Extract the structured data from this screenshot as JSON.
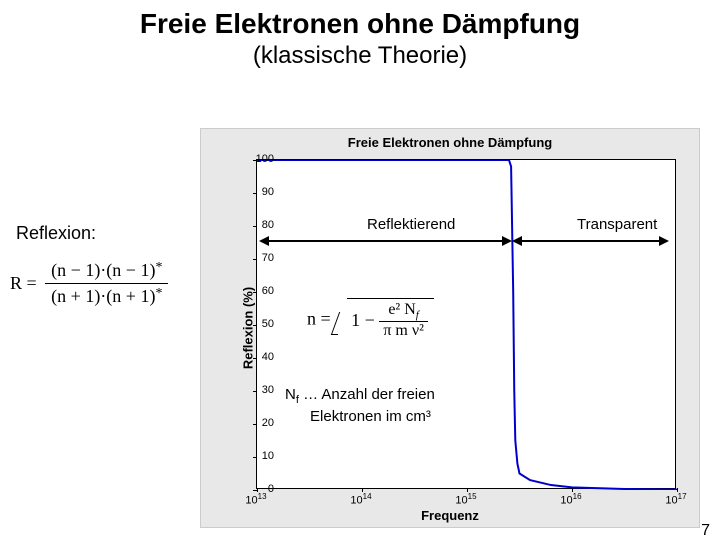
{
  "title": "Freie Elektronen ohne Dämpfung",
  "subtitle": "(klassische Theorie)",
  "reflexion_label": "Reflexion:",
  "formula_R": {
    "R": "R =",
    "num": "(n − 1)·(n − 1)",
    "den": "(n + 1)·(n + 1)",
    "star": "*"
  },
  "chart": {
    "type": "line",
    "title": "Freie Elektronen ohne Dämpfung",
    "ylabel": "Reflexion (%)",
    "xlabel": "Frequenz",
    "ylim": [
      0,
      100
    ],
    "yticks": [
      0,
      10,
      20,
      30,
      40,
      50,
      60,
      70,
      80,
      90,
      100
    ],
    "xlim_exp": [
      13,
      17
    ],
    "xticks_exp": [
      13,
      14,
      15,
      16,
      17
    ],
    "line_color": "#0000cc",
    "line_width": 2,
    "background_color": "#ffffff",
    "container_bg": "#e8e8e8",
    "curve_points": [
      [
        13.0,
        100
      ],
      [
        14.0,
        100
      ],
      [
        14.5,
        100
      ],
      [
        15.0,
        100
      ],
      [
        15.3,
        100
      ],
      [
        15.4,
        100
      ],
      [
        15.42,
        98
      ],
      [
        15.44,
        60
      ],
      [
        15.45,
        30
      ],
      [
        15.46,
        15
      ],
      [
        15.48,
        8
      ],
      [
        15.5,
        5
      ],
      [
        15.6,
        3
      ],
      [
        15.8,
        1.5
      ],
      [
        16.0,
        0.8
      ],
      [
        16.5,
        0.3
      ],
      [
        17.0,
        0.1
      ]
    ],
    "drop_x_exp": 15.43
  },
  "regions": {
    "reflecting": "Reflektierend",
    "transparent": "Transparent"
  },
  "formula_n": {
    "lhs": "n =",
    "one_minus": "1 −",
    "num": "e² N",
    "num_sub": "f",
    "den": "π m ν²"
  },
  "nf_note": {
    "prefix": "N",
    "sub": "f",
    "text": " … Anzahl der freien",
    "text2": "Elektronen im cm³"
  },
  "page_number": "7"
}
